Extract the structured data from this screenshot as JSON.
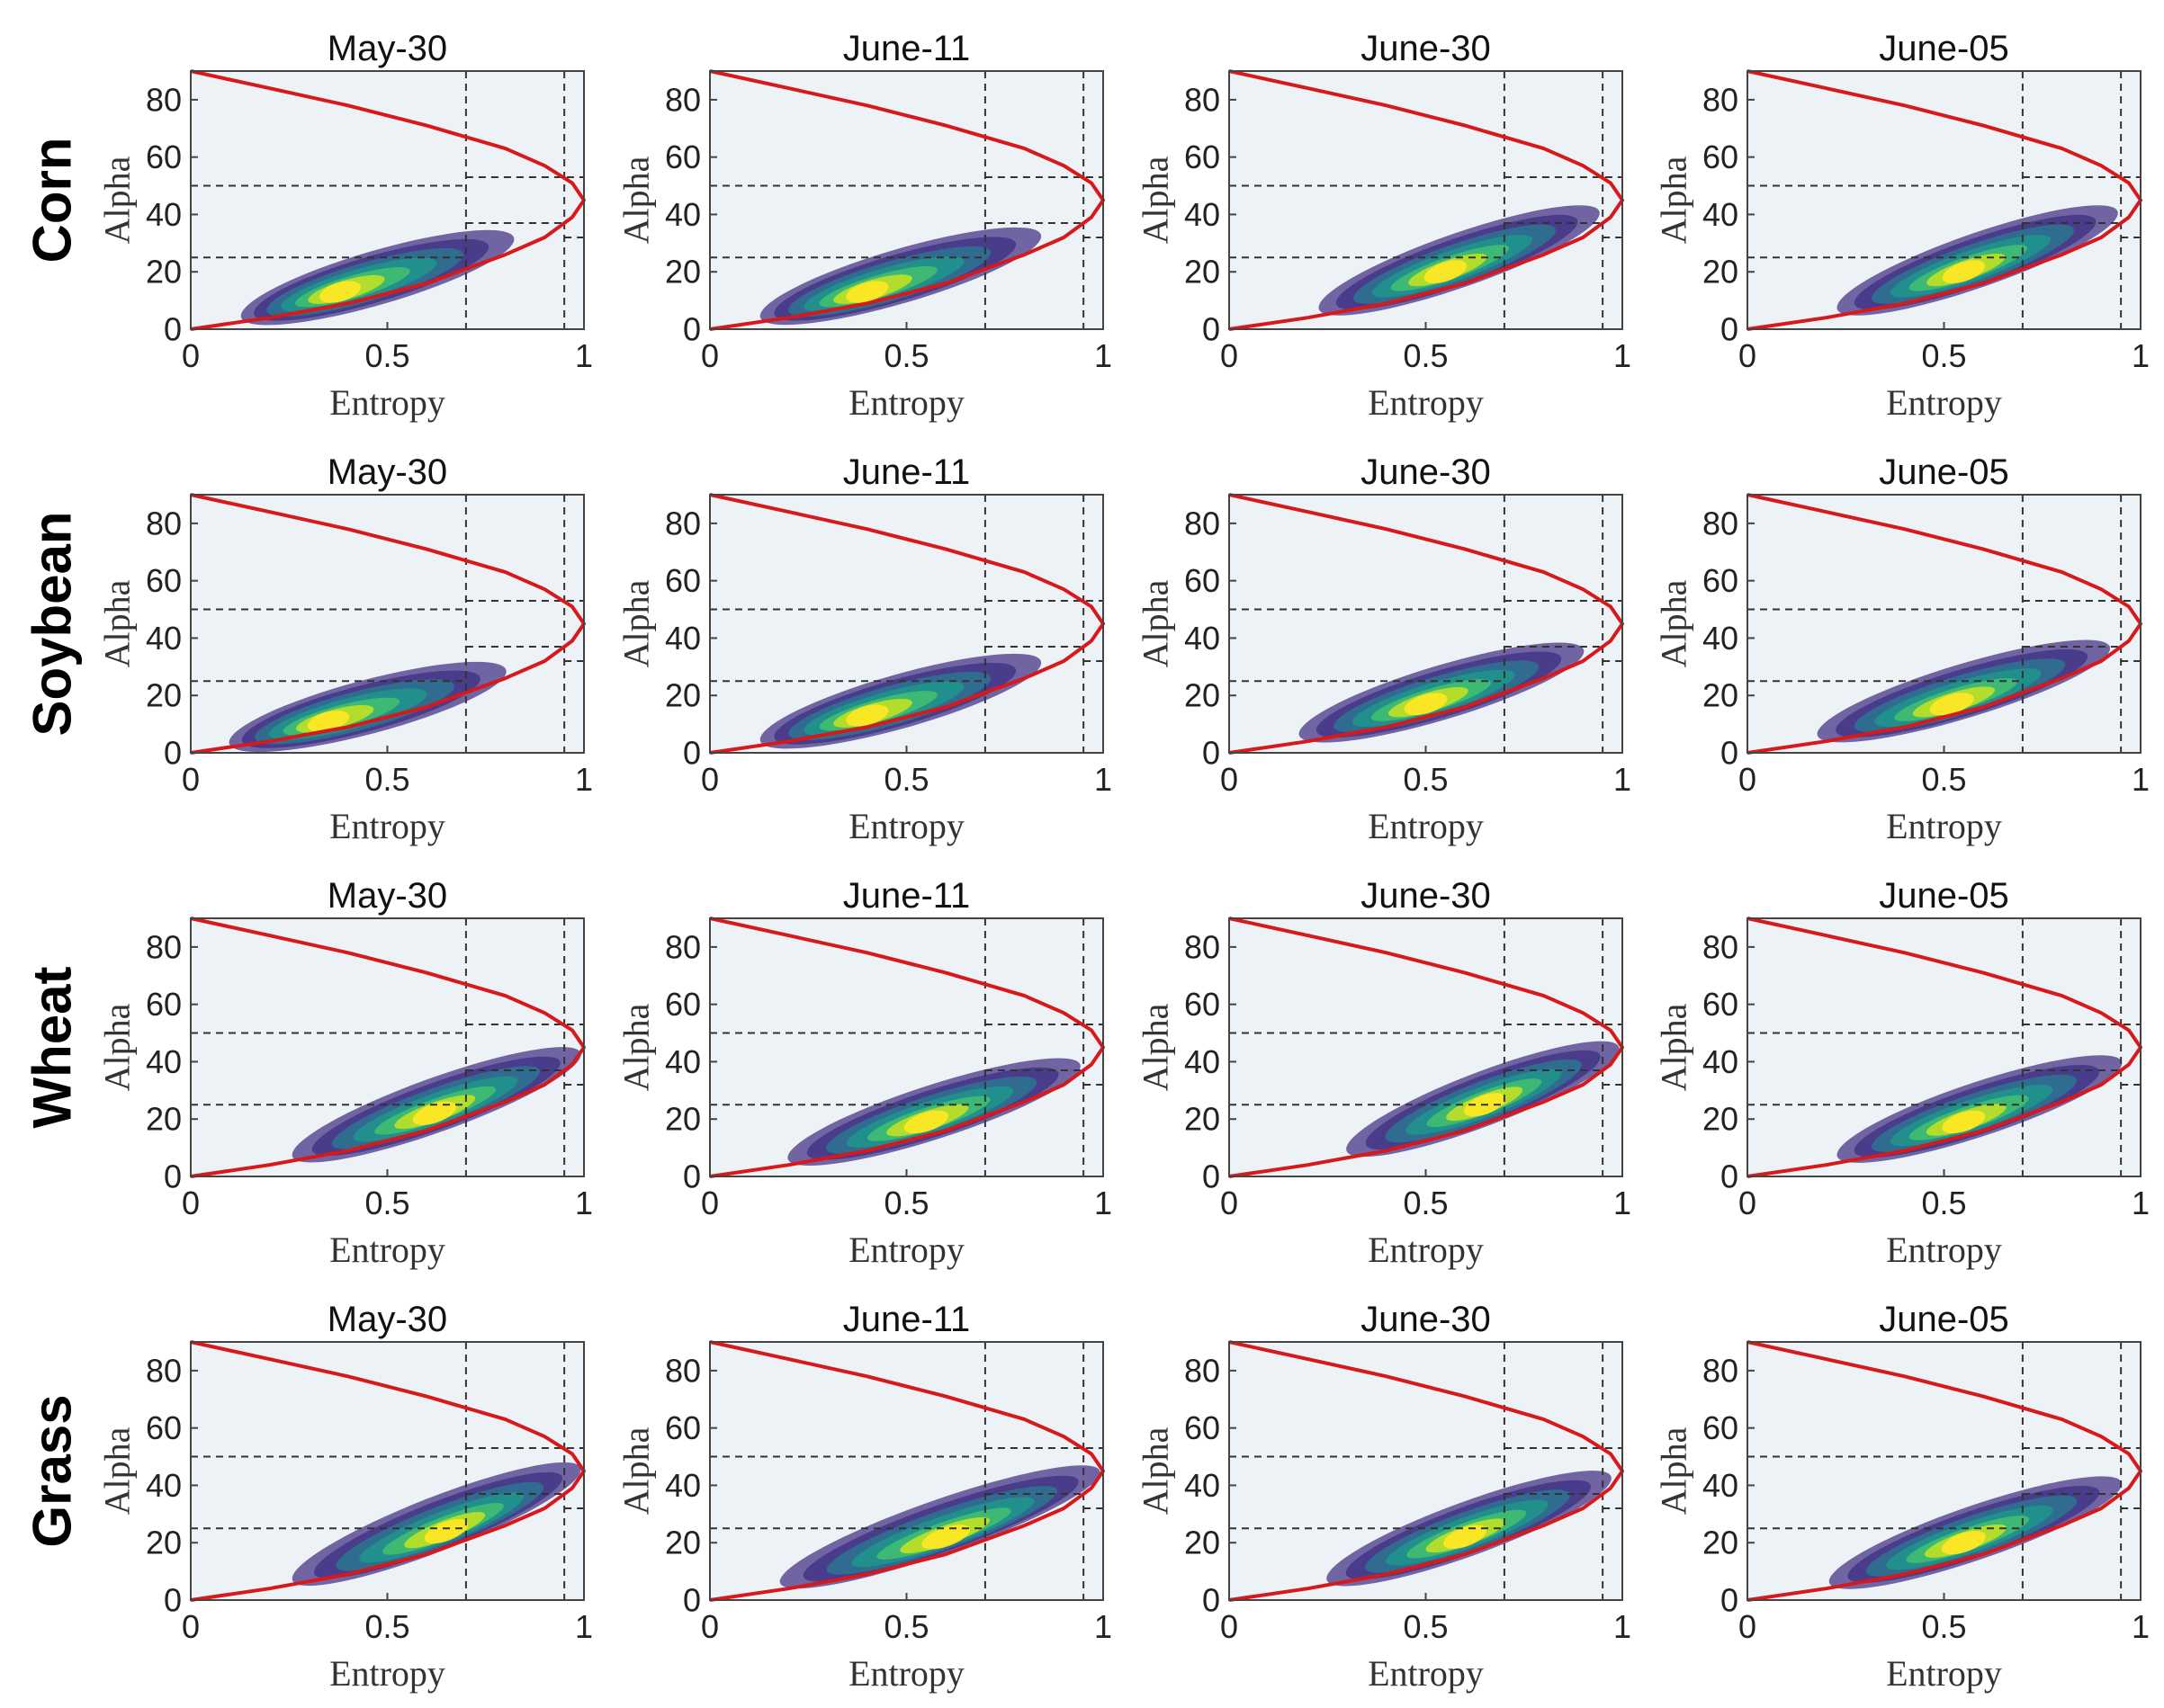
{
  "chart_data": {
    "type": "scatter",
    "title": "",
    "layout": "4 rows x 4 columns of H-Alpha density plots",
    "rows": [
      "Corn",
      "Soybean",
      "Wheat",
      "Grass"
    ],
    "columns": [
      "May-30",
      "June-11",
      "June-30",
      "June-05"
    ],
    "xlabel": "Entropy",
    "ylabel": "Alpha",
    "xlim": [
      0,
      1
    ],
    "ylim": [
      0,
      90
    ],
    "xticks": [
      "0",
      "0.5",
      "1"
    ],
    "yticks": [
      "0",
      "20",
      "40",
      "60",
      "80"
    ],
    "zone_boundaries": {
      "entropy": [
        0.7,
        0.95
      ],
      "alpha_low_region": [
        25,
        50
      ],
      "alpha_mid_region": [
        37,
        53
      ],
      "alpha_high_region": [
        32
      ]
    },
    "boundary_curve": {
      "name": "feasible region limit",
      "color": "#d7191c",
      "upper": [
        [
          0,
          90
        ],
        [
          0.2,
          84
        ],
        [
          0.4,
          78
        ],
        [
          0.6,
          71
        ],
        [
          0.8,
          63
        ],
        [
          0.9,
          57
        ],
        [
          0.97,
          51
        ],
        [
          1.0,
          45
        ]
      ],
      "lower": [
        [
          0,
          0
        ],
        [
          0.2,
          4
        ],
        [
          0.4,
          9
        ],
        [
          0.6,
          16
        ],
        [
          0.8,
          26
        ],
        [
          0.9,
          32
        ],
        [
          0.97,
          39
        ],
        [
          1.0,
          45
        ]
      ]
    },
    "density_color_scale": [
      "#5b4b94",
      "#463a8a",
      "#2f6f8f",
      "#21918c",
      "#3fbc73",
      "#b8de29",
      "#fde725"
    ],
    "panels": [
      {
        "row": "Corn",
        "column": "May-30",
        "density": {
          "entropy_range": [
            0.15,
            0.8
          ],
          "alpha_range": [
            5,
            31
          ],
          "peak_entropy": 0.38,
          "peak_alpha": 13
        }
      },
      {
        "row": "Corn",
        "column": "June-11",
        "density": {
          "entropy_range": [
            0.15,
            0.82
          ],
          "alpha_range": [
            5,
            32
          ],
          "peak_entropy": 0.4,
          "peak_alpha": 13
        }
      },
      {
        "row": "Corn",
        "column": "June-30",
        "density": {
          "entropy_range": [
            0.25,
            0.92
          ],
          "alpha_range": [
            8,
            40
          ],
          "peak_entropy": 0.55,
          "peak_alpha": 20
        }
      },
      {
        "row": "Corn",
        "column": "June-05",
        "density": {
          "entropy_range": [
            0.25,
            0.92
          ],
          "alpha_range": [
            8,
            40
          ],
          "peak_entropy": 0.55,
          "peak_alpha": 20
        }
      },
      {
        "row": "Soybean",
        "column": "May-30",
        "density": {
          "entropy_range": [
            0.12,
            0.78
          ],
          "alpha_range": [
            4,
            28
          ],
          "peak_entropy": 0.35,
          "peak_alpha": 11
        }
      },
      {
        "row": "Soybean",
        "column": "June-11",
        "density": {
          "entropy_range": [
            0.15,
            0.82
          ],
          "alpha_range": [
            5,
            31
          ],
          "peak_entropy": 0.4,
          "peak_alpha": 13
        }
      },
      {
        "row": "Soybean",
        "column": "June-30",
        "density": {
          "entropy_range": [
            0.2,
            0.88
          ],
          "alpha_range": [
            7,
            35
          ],
          "peak_entropy": 0.5,
          "peak_alpha": 17
        }
      },
      {
        "row": "Soybean",
        "column": "June-05",
        "density": {
          "entropy_range": [
            0.2,
            0.9
          ],
          "alpha_range": [
            7,
            36
          ],
          "peak_entropy": 0.52,
          "peak_alpha": 17
        }
      },
      {
        "row": "Wheat",
        "column": "May-30",
        "density": {
          "entropy_range": [
            0.28,
            0.97
          ],
          "alpha_range": [
            8,
            42
          ],
          "peak_entropy": 0.62,
          "peak_alpha": 22
        }
      },
      {
        "row": "Wheat",
        "column": "June-11",
        "density": {
          "entropy_range": [
            0.22,
            0.92
          ],
          "alpha_range": [
            7,
            38
          ],
          "peak_entropy": 0.55,
          "peak_alpha": 19
        }
      },
      {
        "row": "Wheat",
        "column": "June-30",
        "density": {
          "entropy_range": [
            0.32,
            0.97
          ],
          "alpha_range": [
            10,
            44
          ],
          "peak_entropy": 0.65,
          "peak_alpha": 25
        }
      },
      {
        "row": "Wheat",
        "column": "June-05",
        "density": {
          "entropy_range": [
            0.25,
            0.93
          ],
          "alpha_range": [
            8,
            39
          ],
          "peak_entropy": 0.55,
          "peak_alpha": 19
        }
      },
      {
        "row": "Grass",
        "column": "May-30",
        "density": {
          "entropy_range": [
            0.28,
            0.97
          ],
          "alpha_range": [
            8,
            45
          ],
          "peak_entropy": 0.65,
          "peak_alpha": 24
        }
      },
      {
        "row": "Grass",
        "column": "June-11",
        "density": {
          "entropy_range": [
            0.2,
            0.97
          ],
          "alpha_range": [
            7,
            44
          ],
          "peak_entropy": 0.6,
          "peak_alpha": 22
        }
      },
      {
        "row": "Grass",
        "column": "June-30",
        "density": {
          "entropy_range": [
            0.27,
            0.95
          ],
          "alpha_range": [
            8,
            42
          ],
          "peak_entropy": 0.6,
          "peak_alpha": 22
        }
      },
      {
        "row": "Grass",
        "column": "June-05",
        "density": {
          "entropy_range": [
            0.23,
            0.93
          ],
          "alpha_range": [
            7,
            40
          ],
          "peak_entropy": 0.55,
          "peak_alpha": 20
        }
      }
    ]
  }
}
